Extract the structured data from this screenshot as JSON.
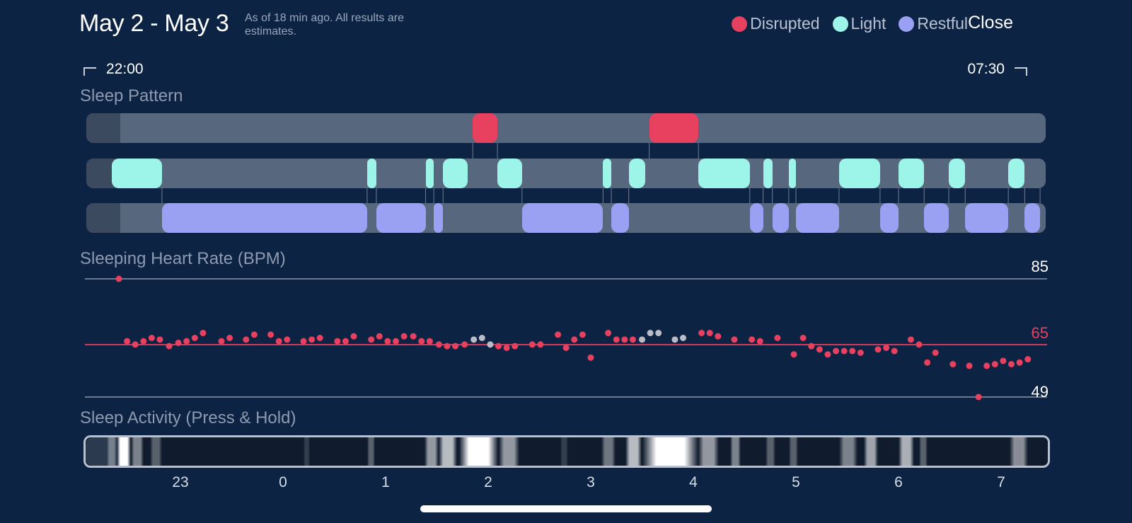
{
  "header": {
    "title": "May 2 - May 3",
    "subtitle": "As of 18 min ago. All results are estimates.",
    "close_label": "Close"
  },
  "legend": [
    {
      "label": "Disrupted",
      "color": "#e8405f"
    },
    {
      "label": "Light",
      "color": "#9cf5e8"
    },
    {
      "label": "Restful",
      "color": "#9aa0f2"
    }
  ],
  "time_range": {
    "start": "22:00",
    "end": "07:30"
  },
  "sleep_pattern": {
    "title": "Sleep Pattern",
    "rows": [
      {
        "stage": "Disrupted",
        "color": "#e8405f",
        "segments": [
          [
            1.85,
            2.09
          ],
          [
            3.57,
            4.05
          ]
        ]
      },
      {
        "stage": "Light",
        "color": "#9cf5e8",
        "segments": [
          [
            -1.67,
            -1.18
          ],
          [
            0.82,
            0.91
          ],
          [
            1.39,
            1.47
          ],
          [
            1.56,
            1.8
          ],
          [
            2.09,
            2.33
          ],
          [
            3.12,
            3.2
          ],
          [
            3.37,
            3.53
          ],
          [
            4.05,
            4.55
          ],
          [
            4.68,
            4.77
          ],
          [
            4.93,
            5.0
          ],
          [
            5.42,
            5.82
          ],
          [
            6.0,
            6.25
          ],
          [
            6.49,
            6.65
          ],
          [
            7.07,
            7.23
          ]
        ]
      },
      {
        "stage": "Restful",
        "color": "#9aa0f2",
        "segments": [
          [
            -1.18,
            0.82
          ],
          [
            0.91,
            1.39
          ],
          [
            1.47,
            1.56
          ],
          [
            2.33,
            3.12
          ],
          [
            3.2,
            3.37
          ],
          [
            4.55,
            4.68
          ],
          [
            4.77,
            4.93
          ],
          [
            5.0,
            5.42
          ],
          [
            5.82,
            6.0
          ],
          [
            6.25,
            6.49
          ],
          [
            6.65,
            7.07
          ],
          [
            7.23,
            7.38
          ]
        ]
      }
    ]
  },
  "chart_data": {
    "type": "scatter",
    "title": "Sleeping Heart Rate (BPM)",
    "ylim": [
      49,
      85
    ],
    "reference_lines": [
      {
        "label": "85",
        "value": 85
      },
      {
        "label": "65",
        "value": 65
      },
      {
        "label": "49",
        "value": 49
      }
    ],
    "x_ticks": [
      "23",
      "0",
      "1",
      "2",
      "3",
      "4",
      "5",
      "6",
      "7"
    ],
    "series": [
      {
        "color": "#e8405f",
        "points": [
          [
            -1.6,
            85
          ],
          [
            -1.52,
            66
          ],
          [
            -1.44,
            65
          ],
          [
            -1.36,
            66
          ],
          [
            -1.28,
            67
          ],
          [
            -1.2,
            66.5
          ],
          [
            -1.11,
            64.5
          ],
          [
            -1.02,
            65.5
          ],
          [
            -0.94,
            66
          ],
          [
            -0.86,
            67
          ],
          [
            -0.78,
            68.5
          ],
          [
            -0.6,
            66
          ],
          [
            -0.52,
            67
          ],
          [
            -0.36,
            66.5
          ],
          [
            -0.28,
            68
          ],
          [
            -0.12,
            68
          ],
          [
            -0.04,
            66
          ],
          [
            0.04,
            66.5
          ],
          [
            0.2,
            66
          ],
          [
            0.28,
            66.5
          ],
          [
            0.36,
            67
          ],
          [
            0.53,
            66
          ],
          [
            0.61,
            66
          ],
          [
            0.69,
            67.5
          ],
          [
            0.86,
            66.5
          ],
          [
            0.94,
            67.5
          ],
          [
            1.02,
            66
          ],
          [
            1.1,
            66
          ],
          [
            1.18,
            67.5
          ],
          [
            1.27,
            67.5
          ],
          [
            1.35,
            66
          ],
          [
            1.43,
            66
          ],
          [
            1.52,
            65
          ],
          [
            1.6,
            64.5
          ],
          [
            1.68,
            64.5
          ],
          [
            1.77,
            65
          ],
          [
            2.1,
            64.5
          ],
          [
            2.18,
            64
          ],
          [
            2.26,
            64.5
          ],
          [
            2.43,
            65
          ],
          [
            2.51,
            65
          ],
          [
            2.68,
            68
          ],
          [
            2.76,
            64
          ],
          [
            2.84,
            66.5
          ],
          [
            2.92,
            68
          ],
          [
            3.0,
            61
          ],
          [
            3.17,
            68.5
          ],
          [
            3.25,
            66.5
          ],
          [
            3.33,
            66.5
          ],
          [
            3.41,
            66.5
          ],
          [
            4.08,
            68.5
          ],
          [
            4.16,
            68.5
          ],
          [
            4.24,
            67.5
          ],
          [
            4.4,
            66.5
          ],
          [
            4.57,
            66.5
          ],
          [
            4.65,
            66
          ],
          [
            4.82,
            67
          ],
          [
            4.98,
            62
          ],
          [
            5.07,
            67
          ],
          [
            5.15,
            64.5
          ],
          [
            5.23,
            63.5
          ],
          [
            5.31,
            62
          ],
          [
            5.39,
            63
          ],
          [
            5.47,
            63
          ],
          [
            5.55,
            63
          ],
          [
            5.63,
            62.5
          ],
          [
            5.8,
            63.5
          ],
          [
            5.88,
            64
          ],
          [
            5.96,
            63
          ],
          [
            6.12,
            66.5
          ],
          [
            6.2,
            65
          ],
          [
            6.28,
            59.5
          ],
          [
            6.36,
            62.5
          ],
          [
            6.53,
            59
          ],
          [
            6.69,
            58.5
          ],
          [
            6.78,
            49
          ],
          [
            6.86,
            58.5
          ],
          [
            6.94,
            59
          ],
          [
            7.02,
            60
          ],
          [
            7.1,
            59
          ],
          [
            7.18,
            59.5
          ],
          [
            7.26,
            60.5
          ]
        ]
      },
      {
        "color": "#b7bcc6",
        "points": [
          [
            1.86,
            66.5
          ],
          [
            1.94,
            67
          ],
          [
            2.02,
            65
          ],
          [
            3.5,
            66.5
          ],
          [
            3.58,
            68.5
          ],
          [
            3.66,
            68.5
          ],
          [
            3.82,
            66.5
          ],
          [
            3.9,
            67
          ]
        ]
      }
    ]
  },
  "sleep_activity": {
    "title": "Sleep Activity (Press & Hold)",
    "bands": [
      {
        "start": -1.72,
        "end": -1.62,
        "level": 0.35
      },
      {
        "start": -1.62,
        "end": -1.48,
        "level": 1.0
      },
      {
        "start": -1.48,
        "end": -1.36,
        "level": 0.45
      },
      {
        "start": -1.3,
        "end": -1.18,
        "level": 0.3
      },
      {
        "start": 0.2,
        "end": 0.26,
        "level": 0.15
      },
      {
        "start": 0.82,
        "end": 0.9,
        "level": 0.3
      },
      {
        "start": 1.38,
        "end": 1.52,
        "level": 0.55
      },
      {
        "start": 1.52,
        "end": 1.7,
        "level": 0.7
      },
      {
        "start": 1.72,
        "end": 2.1,
        "level": 1.0
      },
      {
        "start": 2.1,
        "end": 2.3,
        "level": 0.55
      },
      {
        "start": 2.7,
        "end": 2.78,
        "level": 0.15
      },
      {
        "start": 3.1,
        "end": 3.24,
        "level": 0.4
      },
      {
        "start": 3.34,
        "end": 3.5,
        "level": 0.7
      },
      {
        "start": 3.5,
        "end": 4.05,
        "level": 1.0
      },
      {
        "start": 4.05,
        "end": 4.25,
        "level": 0.55
      },
      {
        "start": 4.36,
        "end": 4.46,
        "level": 0.45
      },
      {
        "start": 4.7,
        "end": 4.8,
        "level": 0.3
      },
      {
        "start": 4.93,
        "end": 5.02,
        "level": 0.3
      },
      {
        "start": 5.42,
        "end": 5.6,
        "level": 0.45
      },
      {
        "start": 5.66,
        "end": 5.8,
        "level": 0.6
      },
      {
        "start": 6.0,
        "end": 6.15,
        "level": 0.65
      },
      {
        "start": 6.2,
        "end": 6.28,
        "level": 0.3
      },
      {
        "start": 7.08,
        "end": 7.26,
        "level": 0.5
      }
    ]
  }
}
